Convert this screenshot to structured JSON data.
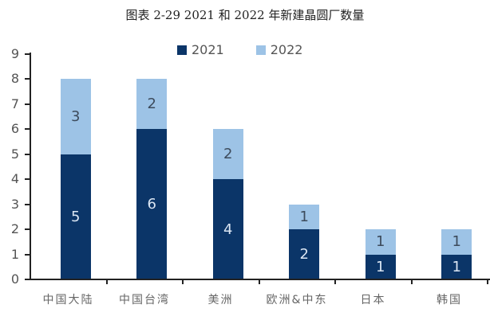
{
  "title": "图表 2-29 2021 和 2022 年新建晶圆厂数量",
  "legend": [
    {
      "label": "2021",
      "color": "#0b3568"
    },
    {
      "label": "2022",
      "color": "#9dc3e6"
    }
  ],
  "chart_data": {
    "type": "bar",
    "stacked": true,
    "title": "图表 2-29 2021 和 2022 年新建晶圆厂数量",
    "categories": [
      "中国大陆",
      "中国台湾",
      "美洲",
      "欧洲&中东",
      "日本",
      "韩国"
    ],
    "series": [
      {
        "name": "2021",
        "color": "#0b3568",
        "values": [
          5,
          6,
          4,
          2,
          1,
          1
        ]
      },
      {
        "name": "2022",
        "color": "#9dc3e6",
        "values": [
          3,
          2,
          2,
          1,
          1,
          1
        ]
      }
    ],
    "xlabel": "",
    "ylabel": "",
    "ylim": [
      0,
      9
    ],
    "yticks": [
      0,
      1,
      2,
      3,
      4,
      5,
      6,
      7,
      8,
      9
    ],
    "grid": false,
    "legend_position": "top"
  }
}
